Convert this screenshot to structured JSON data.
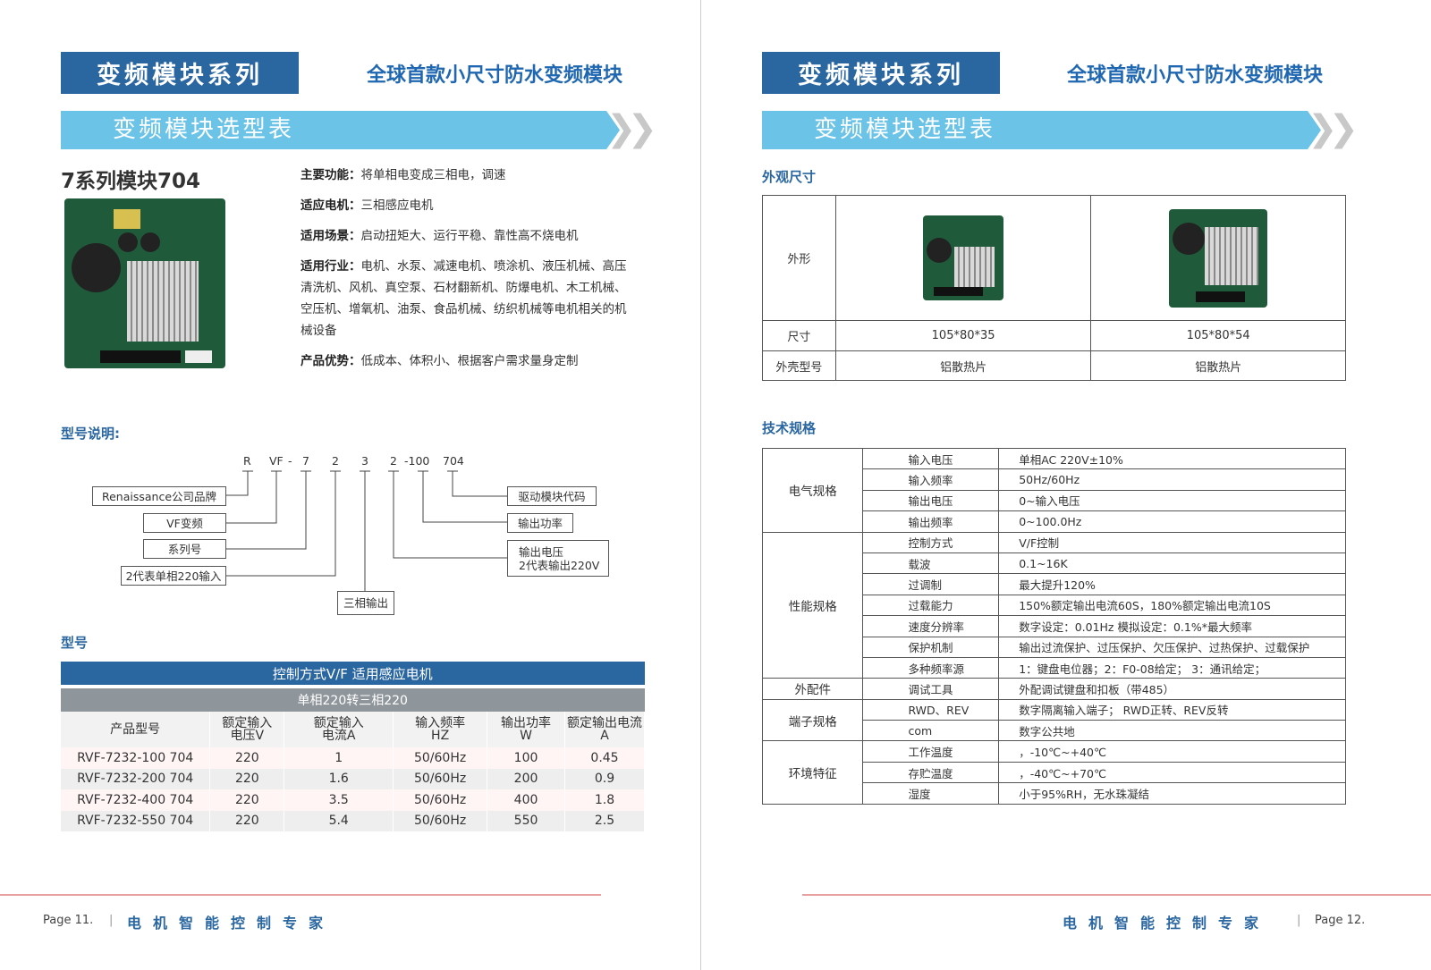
{
  "left": {
    "series": "变频模块系列",
    "slogan": "全球首款小尺寸防水变频模块",
    "banner": "变频模块选型表",
    "product_title": "7系列模块704",
    "features": [
      {
        "k": "主要功能：",
        "v": "将单相电变成三相电，调速"
      },
      {
        "k": "适应电机：",
        "v": "三相感应电机"
      },
      {
        "k": "适用场景：",
        "v": "启动扭矩大、运行平稳、靠性高不烧电机"
      },
      {
        "k": "适用行业：",
        "v": "电机、水泵、减速电机、喷涂机、液压机械、高压清洗机、风机、真空泵、石材翻新机、防爆电机、木工机械、空压机、增氧机、油泵、食品机械、纺织机械等电机相关的机械设备"
      },
      {
        "k": "产品优势：",
        "v": "低成本、体积小、根据客户需求量身定制"
      }
    ],
    "model_desc_title": "型号说明:",
    "code": [
      "R",
      "VF",
      "-",
      "7",
      "2",
      "3",
      "2",
      "-100",
      "704"
    ],
    "code_labels": {
      "brand": "Renaissance公司品牌",
      "vf": "VF变频",
      "series": "系列号",
      "input": "2代表单相220输入",
      "phase": "三相输出",
      "voltage_1": "输出电压",
      "voltage_2": "2代表输出220V",
      "power": "输出功率",
      "driver": "驱动模块代码"
    },
    "model_title": "型号",
    "table": {
      "title": "控制方式V/F 适用感应电机",
      "subtitle": "单相220转三相220",
      "headers": [
        [
          "产品型号",
          ""
        ],
        [
          "额定输入",
          "电压V"
        ],
        [
          "额定输入",
          "电流A"
        ],
        [
          "输入频率",
          "HZ"
        ],
        [
          "输出功率",
          "W"
        ],
        [
          "额定输出电流",
          "A"
        ]
      ],
      "rows": [
        [
          "RVF-7232-100 704",
          "220",
          "1",
          "50/60Hz",
          "100",
          "0.45"
        ],
        [
          "RVF-7232-200 704",
          "220",
          "1.6",
          "50/60Hz",
          "200",
          "0.9"
        ],
        [
          "RVF-7232-400 704",
          "220",
          "3.5",
          "50/60Hz",
          "400",
          "1.8"
        ],
        [
          "RVF-7232-550 704",
          "220",
          "5.4",
          "50/60Hz",
          "550",
          "2.5"
        ]
      ]
    },
    "footer": {
      "page": "Page 11.",
      "sep": "|",
      "motto": "电机智能控制专家"
    }
  },
  "right": {
    "series": "变频模块系列",
    "slogan": "全球首款小尺寸防水变频模块",
    "banner": "变频模块选型表",
    "appearance_title": "外观尺寸",
    "appearance": {
      "shape_label": "外形",
      "size_label": "尺寸",
      "housing_label": "外壳型号",
      "sizes": [
        "105*80*35",
        "105*80*54"
      ],
      "housings": [
        "铝散热片",
        "铝散热片"
      ]
    },
    "spec_title": "技术规格",
    "specs": [
      {
        "group": "电气规格",
        "items": [
          [
            "输入电压",
            "单相AC  220V±10%"
          ],
          [
            "输入频率",
            "50Hz/60Hz"
          ],
          [
            "输出电压",
            "0~输入电压"
          ],
          [
            "输出频率",
            "0~100.0Hz"
          ]
        ]
      },
      {
        "group": "性能规格",
        "items": [
          [
            "控制方式",
            "V/F控制"
          ],
          [
            "载波",
            "0.1~16K"
          ],
          [
            "过调制",
            "最大提升120%"
          ],
          [
            "过载能力",
            "150%额定输出电流60S，180%额定输出电流10S"
          ],
          [
            "速度分辨率",
            "数字设定：0.01Hz 模拟设定：0.1%*最大频率"
          ],
          [
            "保护机制",
            "输出过流保护、过压保护、欠压保护、过热保护、过载保护"
          ],
          [
            "多种频率源",
            "1：键盘电位器；2：F0-08给定； 3：通讯给定；"
          ]
        ]
      },
      {
        "group": "外配件",
        "items": [
          [
            "调试工具",
            "外配调试键盘和扣板（带485）"
          ]
        ]
      },
      {
        "group": "端子规格",
        "items": [
          [
            "RWD、REV",
            "数字隔离输入端子； RWD正转、REV反转"
          ],
          [
            "com",
            "数字公共地"
          ]
        ]
      },
      {
        "group": "环境特征",
        "items": [
          [
            "工作温度",
            "，-10℃~+40℃"
          ],
          [
            "存贮温度",
            "，-40℃~+70℃"
          ],
          [
            "湿度",
            "小于95%RH，无水珠凝结"
          ]
        ]
      }
    ],
    "footer": {
      "page": "Page 12.",
      "sep": "|",
      "motto": "电机智能控制专家"
    }
  },
  "colors": {
    "dark_blue": "#2a66a0",
    "light_blue": "#6bc3e8",
    "grey_header": "#8f969b",
    "footer_rule": "#e8a0a0"
  }
}
